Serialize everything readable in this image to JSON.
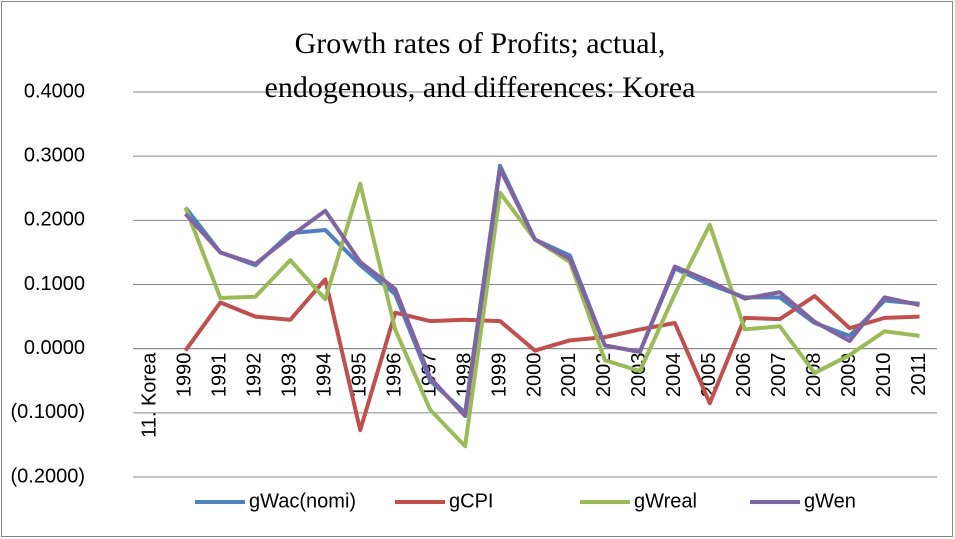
{
  "chart_data": {
    "type": "line",
    "title": "Growth rates of Profits; actual, endogenous, and differences: Korea",
    "categories": [
      "11. Korea",
      "1990",
      "1991",
      "1992",
      "1993",
      "1994",
      "1995",
      "1996",
      "1997",
      "1998",
      "1999",
      "2000",
      "2001",
      "2002",
      "2003",
      "2004",
      "2005",
      "2006",
      "2007",
      "2008",
      "2009",
      "2010",
      "2011"
    ],
    "series": [
      {
        "name": "gWac(nomi)",
        "color": "#4f81bd",
        "values": [
          null,
          0.22,
          0.15,
          0.13,
          0.18,
          0.185,
          0.13,
          0.085,
          -0.05,
          -0.1,
          0.285,
          0.17,
          0.145,
          0.005,
          -0.005,
          0.125,
          0.1,
          0.08,
          0.08,
          0.04,
          0.02,
          0.075,
          0.07
        ]
      },
      {
        "name": "gCPI",
        "color": "#c0504d",
        "values": [
          null,
          -0.003,
          0.072,
          0.05,
          0.045,
          0.108,
          -0.127,
          0.056,
          0.043,
          0.045,
          0.043,
          -0.003,
          0.013,
          0.018,
          0.03,
          0.04,
          -0.085,
          0.048,
          0.046,
          0.082,
          0.032,
          0.048,
          0.05
        ]
      },
      {
        "name": "gWreal",
        "color": "#9bbb59",
        "values": [
          null,
          0.22,
          0.079,
          0.081,
          0.138,
          0.077,
          0.257,
          0.03,
          -0.095,
          -0.152,
          0.243,
          0.17,
          0.135,
          -0.018,
          -0.035,
          0.085,
          0.193,
          0.03,
          0.035,
          -0.038,
          -0.01,
          0.027,
          0.02
        ]
      },
      {
        "name": "gWen",
        "color": "#8064a2",
        "values": [
          null,
          0.21,
          0.15,
          0.132,
          0.175,
          0.215,
          0.135,
          0.093,
          -0.045,
          -0.105,
          0.28,
          0.17,
          0.14,
          0.005,
          -0.005,
          0.128,
          0.105,
          0.078,
          0.088,
          0.042,
          0.012,
          0.08,
          0.068
        ]
      }
    ],
    "ylim": [
      -0.2,
      0.4
    ],
    "yticks": [
      {
        "value": 0.4,
        "label": "0.4000"
      },
      {
        "value": 0.3,
        "label": "0.3000"
      },
      {
        "value": 0.2,
        "label": "0.2000"
      },
      {
        "value": 0.1,
        "label": "0.1000"
      },
      {
        "value": 0,
        "label": "0.0000"
      },
      {
        "value": -0.1,
        "label": "(0.1000)"
      },
      {
        "value": -0.2,
        "label": "(0.2000)"
      }
    ],
    "negative_tick_color": "#ff0000",
    "grid": true,
    "legend": "bottom"
  }
}
